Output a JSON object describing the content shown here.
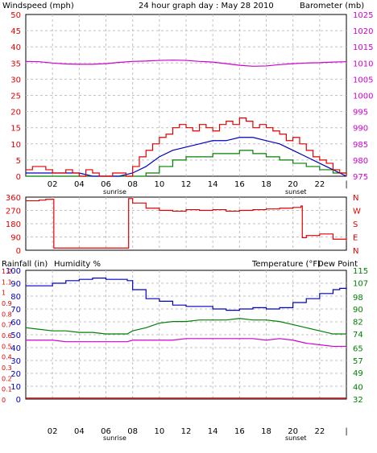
{
  "colors": {
    "windspeed": "#e00000",
    "gust": "#e00000",
    "wind_avg": "#0000c0",
    "wind_min": "#008000",
    "barometer": "#d000d0",
    "direction": "#e00000",
    "rainfall": "#e00000",
    "humidity": "#0000c0",
    "temperature": "#008000",
    "dewpoint": "#d000d0",
    "grid": "#c0c0c0",
    "frame": "#000000"
  },
  "chart_data": [
    {
      "type": "line",
      "title": "24 hour graph day : May 28 2010",
      "left_axis_title": "Windspeed (mph)",
      "right_axis_title": "Barometer (mb)",
      "x_ticks": [
        "02",
        "04",
        "06",
        "08",
        "10",
        "12",
        "14",
        "16",
        "18",
        "20",
        "22",
        "|"
      ],
      "x_markers": {
        "sunrise_at": 5.5,
        "sunset_at": 19.2,
        "sunrise_label": "sunrise",
        "sunset_label": "sunset"
      },
      "x_range": [
        0,
        24
      ],
      "y_left": {
        "range": [
          0,
          50
        ],
        "ticks": [
          "0",
          "5",
          "10",
          "15",
          "20",
          "25",
          "30",
          "35",
          "40",
          "45",
          "50"
        ]
      },
      "y_right": {
        "range": [
          975,
          1025
        ],
        "ticks": [
          "975",
          "980",
          "985",
          "990",
          "995",
          "1000",
          "1005",
          "1010",
          "1015",
          "1020",
          "1025"
        ]
      },
      "series": [
        {
          "name": "Windspeed (mph)",
          "axis": "left",
          "x": [
            0,
            0.5,
            1,
            1.5,
            2,
            2.5,
            3,
            3.5,
            4,
            4.5,
            5,
            5.5,
            6,
            6.5,
            7,
            7.5,
            8,
            8.5,
            9,
            9.5,
            10,
            10.5,
            11,
            11.5,
            12,
            12.5,
            13,
            13.5,
            14,
            14.5,
            15,
            15.5,
            16,
            16.5,
            17,
            17.5,
            18,
            18.5,
            19,
            19.5,
            20,
            20.5,
            21,
            21.5,
            22,
            22.5,
            23,
            23.5,
            24
          ],
          "y": [
            2,
            3,
            3,
            2,
            1,
            1,
            2,
            1,
            0,
            2,
            1,
            0,
            0,
            1,
            1,
            0,
            3,
            6,
            8,
            10,
            12,
            13,
            15,
            16,
            15,
            14,
            16,
            15,
            14,
            16,
            17,
            16,
            18,
            17,
            15,
            16,
            15,
            14,
            13,
            11,
            12,
            10,
            8,
            6,
            5,
            4,
            2,
            1,
            0
          ]
        },
        {
          "name": "Wind average",
          "axis": "left",
          "x": [
            0,
            1,
            2,
            3,
            4,
            5,
            6,
            7,
            8,
            9,
            10,
            11,
            12,
            13,
            14,
            15,
            16,
            17,
            18,
            19,
            20,
            21,
            22,
            23,
            24
          ],
          "y": [
            1,
            1,
            1,
            1,
            1,
            0,
            0,
            0,
            1,
            3,
            6,
            8,
            9,
            10,
            11,
            11,
            12,
            12,
            11,
            10,
            8,
            6,
            4,
            2,
            0
          ]
        },
        {
          "name": "Wind minimum",
          "axis": "left",
          "x": [
            0,
            1,
            2,
            3,
            4,
            5,
            6,
            7,
            8,
            9,
            10,
            11,
            12,
            13,
            14,
            15,
            16,
            17,
            18,
            19,
            20,
            21,
            22,
            23,
            24
          ],
          "y": [
            0,
            0,
            0,
            0,
            0,
            0,
            0,
            0,
            0,
            1,
            3,
            5,
            6,
            6,
            7,
            7,
            8,
            7,
            6,
            5,
            4,
            3,
            2,
            1,
            0
          ]
        },
        {
          "name": "Barometer (mb)",
          "axis": "right",
          "x": [
            0,
            1,
            2,
            3,
            4,
            5,
            6,
            7,
            8,
            9,
            10,
            11,
            12,
            13,
            14,
            15,
            16,
            17,
            18,
            19,
            20,
            21,
            22,
            23,
            24
          ],
          "y": [
            1010.5,
            1010.4,
            1010.0,
            1009.7,
            1009.6,
            1009.6,
            1009.8,
            1010.2,
            1010.5,
            1010.6,
            1010.8,
            1010.9,
            1010.8,
            1010.5,
            1010.3,
            1009.8,
            1009.3,
            1009.0,
            1009.1,
            1009.5,
            1009.8,
            1010.0,
            1010.1,
            1010.3,
            1010.4
          ]
        }
      ]
    },
    {
      "type": "line",
      "y_right_labels": [
        "N",
        "W",
        "S",
        "E",
        "N"
      ],
      "y_left": {
        "range": [
          0,
          360
        ],
        "ticks": [
          "0",
          "90",
          "180",
          "270",
          "360"
        ]
      },
      "x_range": [
        0,
        24
      ],
      "series": [
        {
          "name": "Wind direction",
          "x": [
            0,
            1,
            1.5,
            2,
            2.1,
            3,
            4,
            5,
            6,
            7,
            7.6,
            7.7,
            8,
            9,
            10,
            11,
            12,
            13,
            14,
            15,
            16,
            17,
            18,
            19,
            20,
            20.6,
            20.7,
            21,
            22,
            23,
            24
          ],
          "y": [
            335,
            340,
            345,
            345,
            15,
            15,
            15,
            15,
            15,
            15,
            15,
            350,
            320,
            285,
            270,
            265,
            275,
            270,
            275,
            265,
            270,
            275,
            280,
            285,
            290,
            300,
            85,
            100,
            110,
            75,
            60
          ]
        }
      ]
    },
    {
      "type": "line",
      "left_axis_title": "Rainfall (in)",
      "left_axis_title_2": "Humidity %",
      "right_axis_title": "Temperature (°F)",
      "right_axis_title_2": "Dew Point",
      "x_ticks": [
        "02",
        "04",
        "06",
        "08",
        "10",
        "12",
        "14",
        "16",
        "18",
        "20",
        "22",
        "|"
      ],
      "x_markers": {
        "sunrise_at": 5.5,
        "sunset_at": 19.2,
        "sunrise_label": "sunrise",
        "sunset_label": "sunset"
      },
      "x_range": [
        0,
        24
      ],
      "y_left_rain": {
        "range": [
          0,
          1.2
        ],
        "ticks": [
          "0",
          "0.1",
          "0.2",
          "0.3",
          "0.4",
          "0.5",
          "0.6",
          "0.7",
          "0.8",
          "0.9",
          "1",
          "1.1",
          "1.2"
        ]
      },
      "y_left_humidity": {
        "range": [
          0,
          100
        ],
        "ticks": [
          "0",
          "10",
          "20",
          "30",
          "40",
          "50",
          "60",
          "70",
          "80",
          "90",
          "100"
        ]
      },
      "y_right": {
        "range": [
          32,
          115
        ],
        "ticks": [
          "32",
          "40",
          "49",
          "57",
          "65",
          "74",
          "82",
          "90",
          "98",
          "107",
          "115"
        ]
      },
      "series": [
        {
          "name": "Rainfall",
          "axis": "rain",
          "x": [
            0,
            24
          ],
          "y": [
            0.01,
            0.01
          ]
        },
        {
          "name": "Humidity %",
          "axis": "humidity",
          "x": [
            0,
            1,
            2,
            3,
            4,
            5,
            6,
            7,
            7.6,
            8,
            9,
            10,
            11,
            12,
            13,
            14,
            15,
            16,
            17,
            18,
            19,
            20,
            21,
            22,
            23,
            23.5,
            24
          ],
          "y": [
            88,
            88,
            90,
            92,
            93,
            94,
            93,
            93,
            92,
            85,
            78,
            76,
            73,
            72,
            72,
            70,
            69,
            70,
            71,
            70,
            71,
            75,
            78,
            82,
            85,
            86,
            85
          ]
        },
        {
          "name": "Temperature (°F)",
          "axis": "right",
          "x": [
            0,
            1,
            2,
            3,
            4,
            5,
            6,
            7,
            7.6,
            8,
            9,
            10,
            11,
            12,
            13,
            14,
            15,
            16,
            17,
            18,
            19,
            20,
            21,
            22,
            23,
            24
          ],
          "y": [
            78,
            77,
            76,
            76,
            75,
            75,
            74,
            74,
            74,
            76,
            78,
            81,
            82,
            82,
            83,
            83,
            83,
            84,
            83,
            83,
            82,
            80,
            78,
            76,
            74,
            74
          ]
        },
        {
          "name": "Dew Point",
          "axis": "right",
          "x": [
            0,
            1,
            2,
            3,
            4,
            5,
            6,
            7,
            7.6,
            8,
            9,
            10,
            11,
            12,
            13,
            14,
            15,
            16,
            17,
            18,
            19,
            20,
            21,
            22,
            23,
            24
          ],
          "y": [
            70,
            70,
            70,
            69,
            69,
            69,
            69,
            69,
            69,
            70,
            70,
            70,
            70,
            71,
            71,
            71,
            71,
            71,
            71,
            70,
            71,
            70,
            68,
            67,
            66,
            66
          ]
        }
      ]
    }
  ]
}
